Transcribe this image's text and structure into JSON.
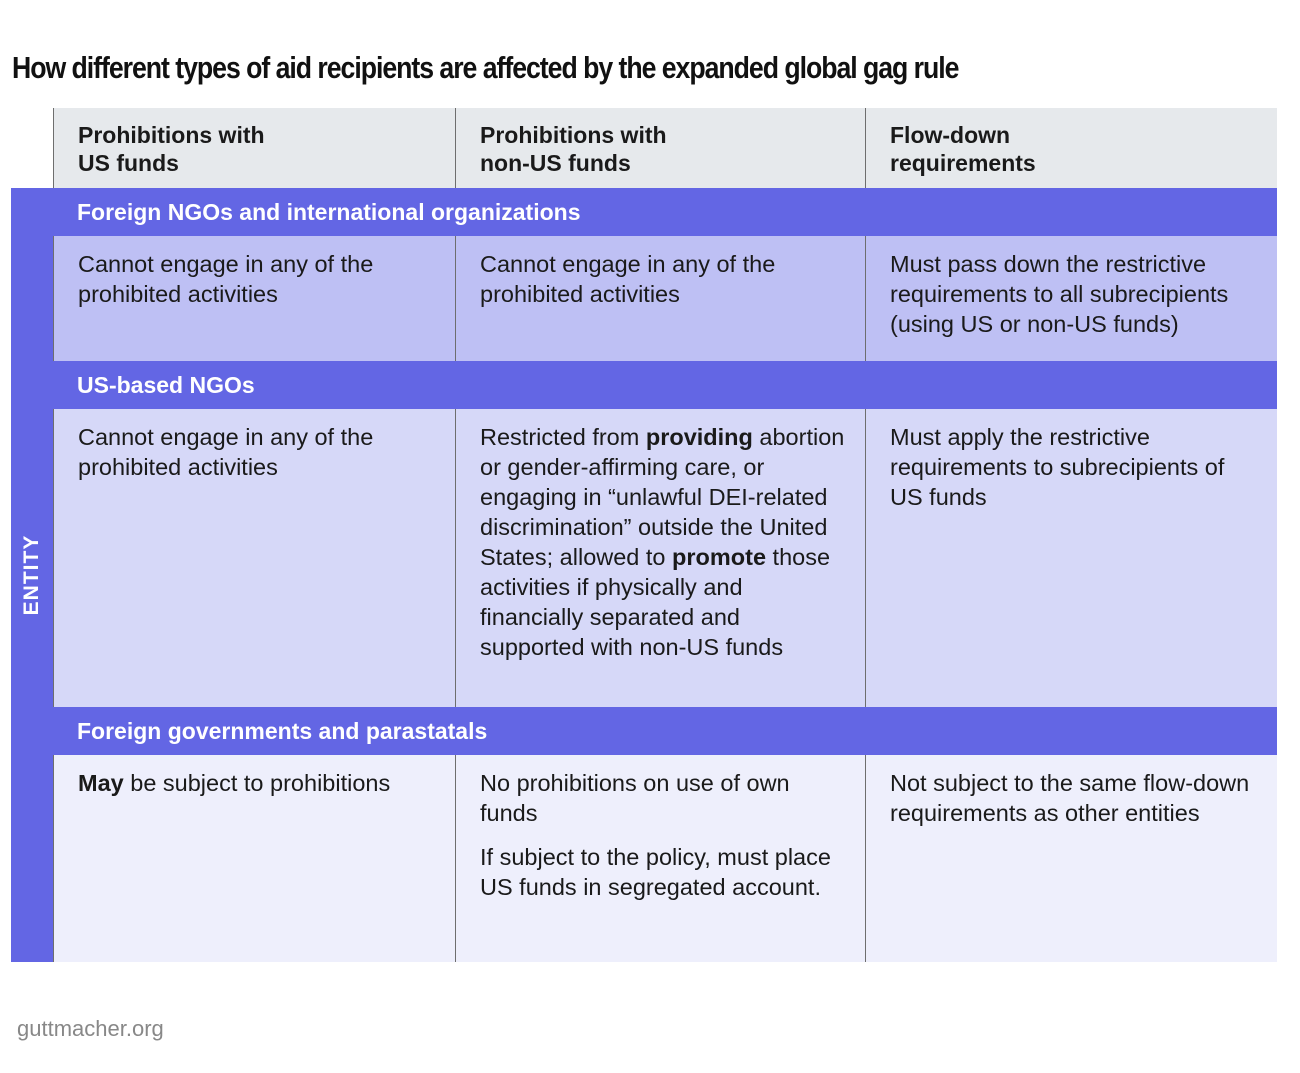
{
  "title": "How different types of aid recipients are affected by the expanded global gag rule",
  "entity_label": "ENTITY",
  "columns": [
    "Prohibitions with\nUS funds",
    "Prohibitions with\nnon-US funds",
    "Flow-down\nrequirements"
  ],
  "sections": [
    {
      "label": "Foreign NGOs and international organizations",
      "cells": [
        "Cannot engage in any of the prohibited activities",
        "Cannot engage in any of the prohibited activities",
        "Must pass down the restrictive requirements to all subrecipients (using US or non-US funds)"
      ]
    },
    {
      "label": "US-based NGOs",
      "cells": [
        "Cannot engage in any of the prohibited activities",
        {
          "t1": "Restricted from ",
          "b1": "providing",
          "t2": " abortion or gender-affirming care, or engaging in “unlawful DEI-related discrimination” outside the United States; allowed to ",
          "b2": "promote",
          "t3": " those activities if physically and financially separated and supported with non-US funds"
        },
        "Must apply the restrictive requirements to subrecipients of US funds"
      ]
    },
    {
      "label": "Foreign governments and parastatals",
      "cells": [
        {
          "b1": "May",
          "t1": " be subject to prohibitions"
        },
        {
          "p1": "No prohibitions on use of own funds",
          "p2": "If subject to the policy, must place US funds in segregated account."
        },
        "Not subject to the same flow-down requirements as other entities"
      ]
    }
  ],
  "footer": "guttmacher.org",
  "colors": {
    "accent": "#6366e4",
    "header": "#e6e9ec",
    "row1": "#bec0f4",
    "row2": "#d6d8f8",
    "row3": "#eeeffc"
  }
}
